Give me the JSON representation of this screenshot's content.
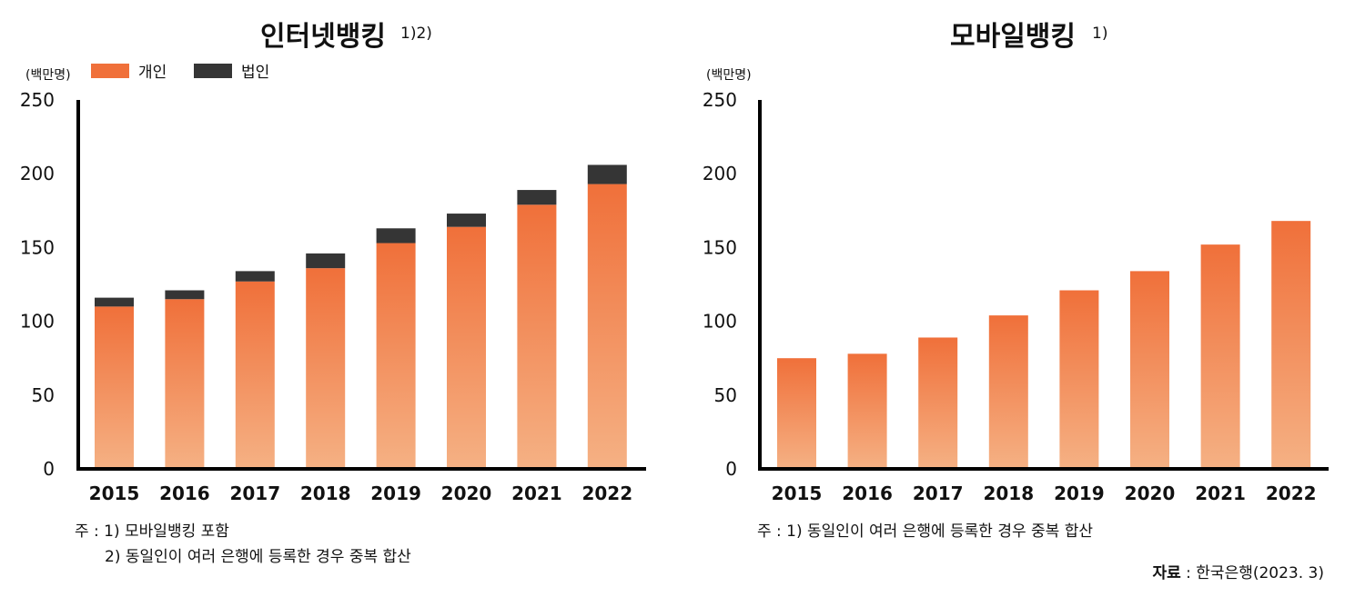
{
  "colors": {
    "personal": "#F0703A",
    "personal_light": "#F5B184",
    "corporate": "#353535",
    "axis": "#000000"
  },
  "chart_data": [
    {
      "type": "bar",
      "stacked": true,
      "title": "인터넷뱅킹",
      "title_sup": "1)2)",
      "unit": "(백만명)",
      "categories": [
        "2015",
        "2016",
        "2017",
        "2018",
        "2019",
        "2020",
        "2021",
        "2022"
      ],
      "series": [
        {
          "name": "개인",
          "values": [
            110,
            115,
            127,
            136,
            153,
            164,
            179,
            193
          ]
        },
        {
          "name": "법인",
          "values": [
            6,
            6,
            7,
            10,
            10,
            9,
            10,
            13
          ]
        }
      ],
      "ylim": [
        0,
        250
      ],
      "yticks": [
        "0",
        "50",
        "100",
        "150",
        "200",
        "250"
      ],
      "legend_position": "top-left",
      "notes": [
        "주 : 1) 모바일뱅킹 포함",
        "2) 동일인이 여러 은행에 등록한 경우 중복 합산"
      ]
    },
    {
      "type": "bar",
      "title": "모바일뱅킹",
      "title_sup": "1)",
      "unit": "(백만명)",
      "categories": [
        "2015",
        "2016",
        "2017",
        "2018",
        "2019",
        "2020",
        "2021",
        "2022"
      ],
      "series": [
        {
          "values": [
            75,
            78,
            89,
            104,
            121,
            134,
            152,
            168
          ]
        }
      ],
      "ylim": [
        0,
        250
      ],
      "yticks": [
        "0",
        "50",
        "100",
        "150",
        "200",
        "250"
      ],
      "notes": [
        "주 : 1) 동일인이 여러 은행에 등록한 경우 중복 합산"
      ]
    }
  ],
  "source": {
    "label": "자료",
    "text": " : 한국은행(2023. 3)"
  }
}
